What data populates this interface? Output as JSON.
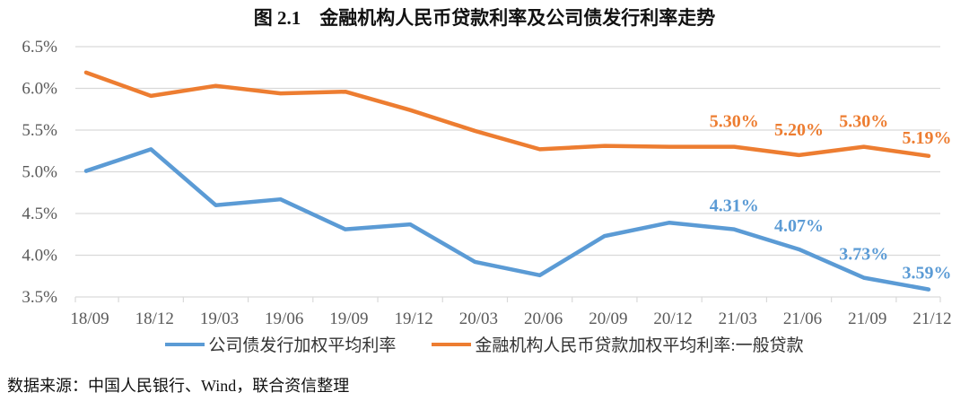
{
  "title": "图 2.1　金融机构人民币贷款利率及公司债发行利率走势",
  "source": "数据来源：中国人民银行、Wind，联合资信整理",
  "chart_data": {
    "type": "line",
    "title": "图 2.1　金融机构人民币贷款利率及公司债发行利率走势",
    "categories": [
      "18/09",
      "18/12",
      "19/03",
      "19/06",
      "19/09",
      "19/12",
      "20/03",
      "20/06",
      "20/09",
      "20/12",
      "21/03",
      "21/06",
      "21/09",
      "21/12"
    ],
    "ylim": [
      3.5,
      6.5
    ],
    "yticks": [
      "3.5%",
      "4.0%",
      "4.5%",
      "5.0%",
      "5.5%",
      "6.0%",
      "6.5%"
    ],
    "ytick_values": [
      3.5,
      4.0,
      4.5,
      5.0,
      5.5,
      6.0,
      6.5
    ],
    "grid": true,
    "legend": "bottom",
    "series": [
      {
        "name": "公司债发行加权平均利率",
        "color": "#5B9BD5",
        "values": [
          5.01,
          5.27,
          4.6,
          4.67,
          4.31,
          4.37,
          3.92,
          3.76,
          4.23,
          4.39,
          4.31,
          4.07,
          3.73,
          3.59
        ],
        "labels": [
          null,
          null,
          null,
          null,
          null,
          null,
          null,
          null,
          null,
          null,
          "4.31%",
          "4.07%",
          "3.73%",
          "3.59%"
        ]
      },
      {
        "name": "金融机构人民币贷款加权平均利率:一般贷款",
        "color": "#ED7D31",
        "values": [
          6.19,
          5.91,
          6.03,
          5.94,
          5.96,
          5.74,
          5.49,
          5.27,
          5.31,
          5.3,
          5.3,
          5.2,
          5.3,
          5.19
        ],
        "labels": [
          null,
          null,
          null,
          null,
          null,
          null,
          null,
          null,
          null,
          null,
          "5.30%",
          "5.20%",
          "5.30%",
          "5.19%"
        ]
      }
    ]
  }
}
